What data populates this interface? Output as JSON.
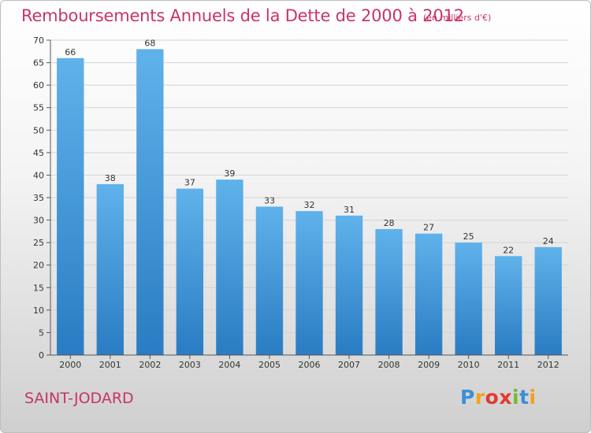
{
  "chart_data": {
    "type": "bar",
    "title": "Remboursements Annuels de la Dette de 2000 à 2012",
    "subtitle": "(en milliers d'€)",
    "categories": [
      "2000",
      "2001",
      "2002",
      "2003",
      "2004",
      "2005",
      "2006",
      "2007",
      "2008",
      "2009",
      "2010",
      "2011",
      "2012"
    ],
    "values": [
      66,
      38,
      68,
      37,
      39,
      33,
      32,
      31,
      28,
      27,
      25,
      22,
      24
    ],
    "ylim": [
      0,
      70
    ],
    "yticks": [
      0,
      5,
      10,
      15,
      20,
      25,
      30,
      35,
      40,
      45,
      50,
      55,
      60,
      65,
      70
    ],
    "xlabel": "",
    "ylabel": "",
    "bar_color": "#4a9fdf"
  },
  "commune": "SAINT-JODARD",
  "logo": {
    "letters": [
      "P",
      "r",
      "o",
      "x",
      "i",
      "t",
      "i"
    ],
    "colors": [
      "#3b8fd6",
      "#f2a11a",
      "#e23a2e",
      "#e23a2e",
      "#79b733",
      "#3b8fd6",
      "#f2a11a"
    ]
  },
  "colors": {
    "accent": "#c8336a"
  }
}
